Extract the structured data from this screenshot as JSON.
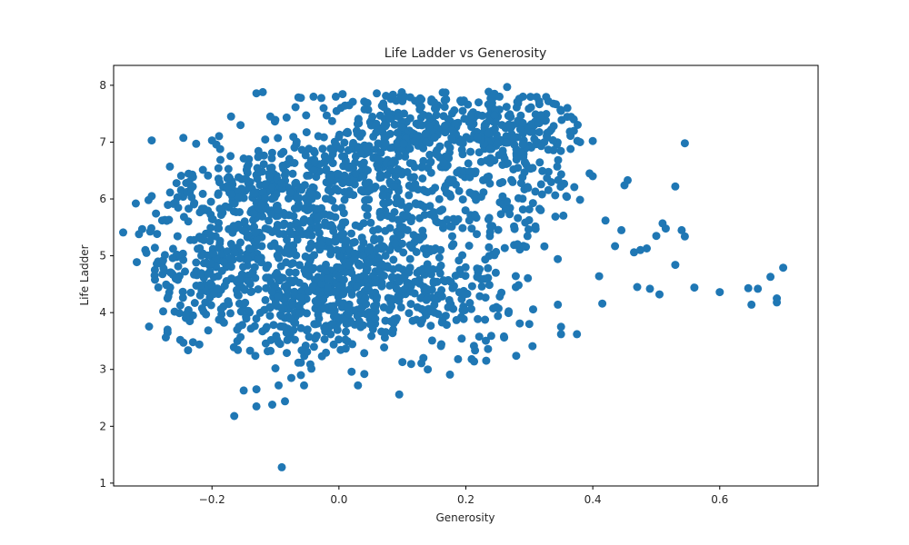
{
  "chart_data": {
    "type": "scatter",
    "title": "Life Ladder vs Generosity",
    "xlabel": "Generosity",
    "ylabel": "Life Ladder",
    "xlim": [
      -0.355,
      0.755
    ],
    "ylim": [
      0.95,
      8.35
    ],
    "xticks": [
      -0.2,
      0.0,
      0.2,
      0.4,
      0.6
    ],
    "xtick_labels": [
      "−0.2",
      "0.0",
      "0.2",
      "0.4",
      "0.6"
    ],
    "yticks": [
      1,
      2,
      3,
      4,
      5,
      6,
      7,
      8
    ],
    "ytick_labels": [
      "1",
      "2",
      "3",
      "4",
      "5",
      "6",
      "7",
      "8"
    ],
    "grid": false,
    "legend": "none",
    "marker_color": "#1f77b4",
    "points": [
      [
        -0.09,
        1.28
      ],
      [
        -0.165,
        2.18
      ],
      [
        -0.13,
        2.35
      ],
      [
        -0.105,
        2.38
      ],
      [
        -0.085,
        2.44
      ],
      [
        0.095,
        2.56
      ],
      [
        -0.15,
        2.63
      ],
      [
        -0.13,
        2.65
      ],
      [
        -0.095,
        2.72
      ],
      [
        -0.055,
        2.72
      ],
      [
        -0.075,
        2.85
      ],
      [
        0.03,
        2.72
      ],
      [
        0.175,
        2.91
      ],
      [
        -0.06,
        2.9
      ],
      [
        0.02,
        2.96
      ],
      [
        0.04,
        2.92
      ],
      [
        0.14,
        3.0
      ],
      [
        0.1,
        3.13
      ],
      [
        -0.045,
        3.09
      ],
      [
        -0.06,
        3.12
      ],
      [
        -0.1,
        3.02
      ],
      [
        0.13,
        3.11
      ],
      [
        -0.295,
        7.03
      ],
      [
        -0.225,
        6.97
      ],
      [
        -0.2,
        7.03
      ],
      [
        -0.17,
        7.45
      ],
      [
        -0.155,
        7.3
      ],
      [
        -0.13,
        7.86
      ],
      [
        -0.12,
        7.88
      ],
      [
        -0.06,
        7.78
      ],
      [
        -0.04,
        7.8
      ],
      [
        -0.005,
        7.8
      ],
      [
        0.07,
        7.68
      ],
      [
        0.1,
        7.72
      ],
      [
        0.13,
        7.75
      ],
      [
        0.15,
        7.7
      ],
      [
        0.195,
        7.55
      ],
      [
        0.22,
        7.7
      ],
      [
        0.245,
        7.8
      ],
      [
        0.265,
        7.97
      ],
      [
        0.29,
        7.8
      ],
      [
        0.33,
        7.72
      ],
      [
        0.35,
        7.55
      ],
      [
        0.36,
        7.6
      ],
      [
        0.37,
        7.4
      ],
      [
        0.38,
        7.0
      ],
      [
        0.4,
        7.02
      ],
      [
        0.365,
        6.88
      ],
      [
        0.545,
        6.98
      ],
      [
        0.455,
        6.33
      ],
      [
        0.45,
        6.24
      ],
      [
        0.53,
        6.22
      ],
      [
        0.4,
        6.4
      ],
      [
        0.395,
        6.45
      ],
      [
        0.42,
        5.62
      ],
      [
        0.445,
        5.45
      ],
      [
        0.435,
        5.17
      ],
      [
        0.465,
        5.06
      ],
      [
        0.475,
        5.1
      ],
      [
        0.485,
        5.13
      ],
      [
        0.5,
        5.35
      ],
      [
        0.51,
        5.57
      ],
      [
        0.515,
        5.48
      ],
      [
        0.54,
        5.45
      ],
      [
        0.545,
        5.34
      ],
      [
        0.53,
        4.84
      ],
      [
        0.41,
        4.64
      ],
      [
        0.47,
        4.45
      ],
      [
        0.49,
        4.42
      ],
      [
        0.505,
        4.32
      ],
      [
        0.56,
        4.44
      ],
      [
        0.6,
        4.36
      ],
      [
        0.645,
        4.43
      ],
      [
        0.66,
        4.42
      ],
      [
        0.65,
        4.14
      ],
      [
        0.68,
        4.63
      ],
      [
        0.69,
        4.25
      ],
      [
        0.69,
        4.18
      ],
      [
        0.7,
        4.79
      ],
      [
        0.415,
        4.16
      ],
      [
        0.345,
        4.14
      ],
      [
        0.35,
        3.75
      ],
      [
        0.35,
        3.62
      ],
      [
        0.375,
        3.62
      ],
      [
        0.305,
        3.41
      ],
      [
        0.3,
        3.8
      ],
      [
        0.285,
        3.81
      ],
      [
        0.26,
        3.58
      ],
      [
        0.24,
        3.59
      ],
      [
        0.235,
        3.36
      ],
      [
        -0.34,
        5.41
      ],
      [
        -0.32,
        5.92
      ],
      [
        -0.315,
        5.38
      ],
      [
        -0.31,
        5.47
      ],
      [
        -0.305,
        5.1
      ],
      [
        -0.3,
        5.98
      ],
      [
        -0.295,
        6.05
      ],
      [
        -0.29,
        5.14
      ],
      [
        -0.285,
        4.9
      ],
      [
        -0.29,
        4.75
      ],
      [
        -0.275,
        4.73
      ],
      [
        -0.27,
        4.25
      ],
      [
        -0.27,
        3.7
      ],
      [
        -0.27,
        3.65
      ],
      [
        -0.25,
        3.52
      ],
      [
        -0.245,
        3.47
      ],
      [
        -0.23,
        3.48
      ],
      [
        -0.22,
        3.44
      ],
      [
        -0.235,
        3.85
      ],
      [
        -0.23,
        3.95
      ],
      [
        -0.185,
        3.97
      ],
      [
        -0.16,
        3.5
      ],
      [
        -0.155,
        3.57
      ],
      [
        -0.14,
        3.33
      ]
    ]
  }
}
